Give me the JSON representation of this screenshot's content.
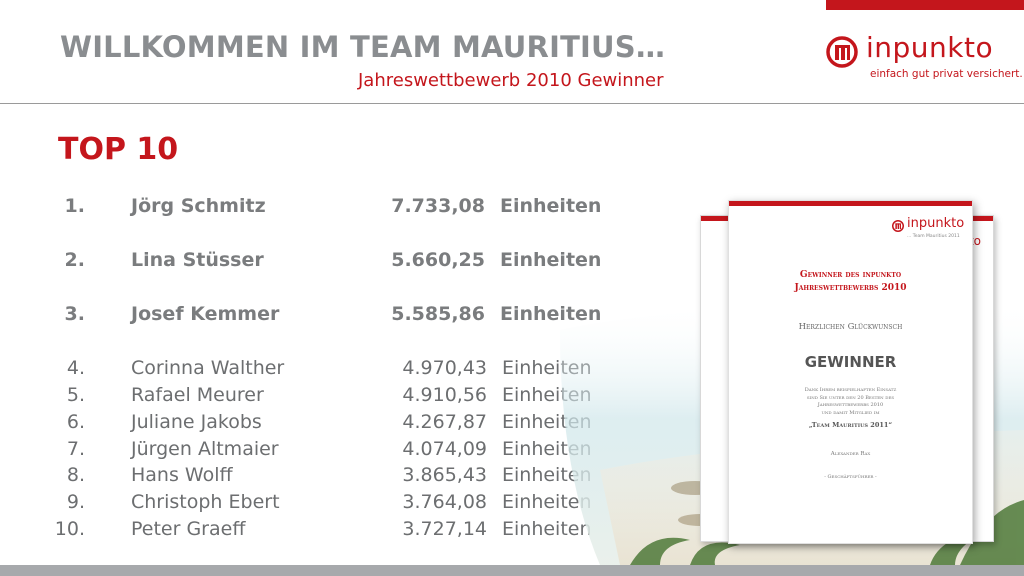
{
  "header": {
    "title": "WILLKOMMEN IM TEAM MAURITIUS…",
    "subtitle": "Jahreswettbewerb 2010 Gewinner"
  },
  "logo": {
    "name": "inpunkto",
    "tagline": "einfach gut privat versichert.",
    "brand_color": "#c4161c"
  },
  "heading": "TOP 10",
  "ranking": [
    {
      "pos": "1.",
      "name": "Jörg Schmitz",
      "value": "7.733,08",
      "unit": "Einheiten"
    },
    {
      "pos": "2.",
      "name": "Lina Stüsser",
      "value": "5.660,25",
      "unit": "Einheiten"
    },
    {
      "pos": "3.",
      "name": "Josef Kemmer",
      "value": "5.585,86",
      "unit": "Einheiten"
    },
    {
      "pos": "4.",
      "name": "Corinna Walther",
      "value": "4.970,43",
      "unit": "Einheiten"
    },
    {
      "pos": "5.",
      "name": "Rafael Meurer",
      "value": "4.910,56",
      "unit": "Einheiten"
    },
    {
      "pos": "6.",
      "name": "Juliane Jakobs",
      "value": "4.267,87",
      "unit": "Einheiten"
    },
    {
      "pos": "7.",
      "name": "Jürgen Altmaier",
      "value": "4.074,09",
      "unit": "Einheiten"
    },
    {
      "pos": "8.",
      "name": "Hans Wolff",
      "value": "3.865,43",
      "unit": "Einheiten"
    },
    {
      "pos": "9.",
      "name": "Christoph Ebert",
      "value": "3.764,08",
      "unit": "Einheiten"
    },
    {
      "pos": "10.",
      "name": "Peter Graeff",
      "value": "3.727,14",
      "unit": "Einheiten"
    }
  ],
  "certificate": {
    "logo_name": "inpunkto",
    "logo_sub": "... Team Mauritius 2011",
    "heading_line1": "Gewinner des inpunkto",
    "heading_line2": "Jahreswettbewerbs 2010",
    "congrats": "Herzlichen Glückwunsch",
    "winner": "GEWINNER",
    "body_line1": "Dank Ihrem beispielhaften Einsatz",
    "body_line2": "sind Sie unter den 20 Besten des",
    "body_line3": "Jahreswettbewerbs 2010",
    "body_line4": "und damit Mitglied im",
    "team": "„Team Mauritius 2011“",
    "signer": "Alexander Rax",
    "role": "- Geschäftsführer -"
  },
  "back_certificate": {
    "logo_name": "inpunkto"
  }
}
